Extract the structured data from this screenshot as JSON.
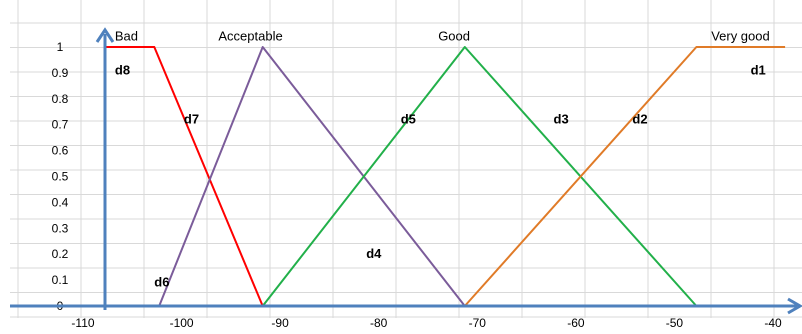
{
  "chart_data": {
    "type": "line",
    "x_ticks": [
      -110,
      -100,
      -90,
      -80,
      -70,
      -60,
      -50,
      -40
    ],
    "y_ticks": [
      "1",
      "0.9",
      "0.8",
      "0.7",
      "0.6",
      "0.5",
      "0.4",
      "0.3",
      "0.2",
      "0.1",
      "0"
    ],
    "xlim": [
      -110,
      -40
    ],
    "ylim": [
      0,
      1
    ],
    "grid": true,
    "series": [
      {
        "name": "Bad",
        "color": "#ff0000",
        "x": [
          -110,
          -105,
          -94
        ],
        "y": [
          1,
          1,
          0
        ]
      },
      {
        "name": "Acceptable",
        "color": "#7b5c9a",
        "x": [
          -104.5,
          -94,
          -73.5
        ],
        "y": [
          0,
          1,
          0
        ]
      },
      {
        "name": "Good",
        "color": "#22b04a",
        "x": [
          -94,
          -73.5,
          -50
        ],
        "y": [
          0,
          1,
          0
        ]
      },
      {
        "name": "Very good",
        "color": "#e07b28",
        "x": [
          -73.5,
          -50,
          -41
        ],
        "y": [
          0,
          1,
          1
        ]
      }
    ],
    "annotations": [
      {
        "text": "Bad",
        "x": -109,
        "y": 1.04,
        "bold": false
      },
      {
        "text": "Acceptable",
        "x": -98.5,
        "y": 1.04,
        "bold": false
      },
      {
        "text": "Good",
        "x": -76.2,
        "y": 1.04,
        "bold": false
      },
      {
        "text": "Very good",
        "x": -48.5,
        "y": 1.04,
        "bold": false
      },
      {
        "text": "d8",
        "x": -109,
        "y": 0.91,
        "bold": true
      },
      {
        "text": "d1",
        "x": -44.5,
        "y": 0.91,
        "bold": true
      },
      {
        "text": "d7",
        "x": -102,
        "y": 0.72,
        "bold": true
      },
      {
        "text": "d5",
        "x": -80,
        "y": 0.72,
        "bold": true
      },
      {
        "text": "d3",
        "x": -64.5,
        "y": 0.72,
        "bold": true
      },
      {
        "text": "d2",
        "x": -56.5,
        "y": 0.72,
        "bold": true
      },
      {
        "text": "d4",
        "x": -83.5,
        "y": 0.2,
        "bold": true
      },
      {
        "text": "d6",
        "x": -105,
        "y": 0.09,
        "bold": true
      }
    ]
  }
}
